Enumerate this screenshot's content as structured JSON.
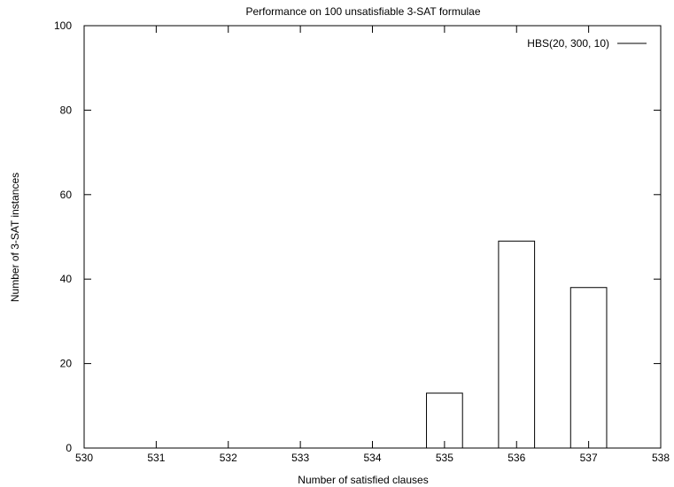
{
  "chart_data": {
    "type": "bar",
    "title": "Performance on 100 unsatisfiable 3-SAT formulae",
    "xlabel": "Number of satisfied clauses",
    "ylabel": "Number of 3-SAT instances",
    "xlim": [
      530,
      538
    ],
    "ylim": [
      0,
      100
    ],
    "x_ticks": [
      530,
      531,
      532,
      533,
      534,
      535,
      536,
      537,
      538
    ],
    "y_ticks": [
      0,
      20,
      40,
      60,
      80,
      100
    ],
    "bar_width": 0.5,
    "series": [
      {
        "name": "HBS(20, 300, 10)",
        "color": "#000000",
        "points": [
          {
            "x": 535,
            "y": 13
          },
          {
            "x": 536,
            "y": 49
          },
          {
            "x": 537,
            "y": 38
          }
        ]
      }
    ],
    "legend_position": "top-right",
    "grid": false
  }
}
